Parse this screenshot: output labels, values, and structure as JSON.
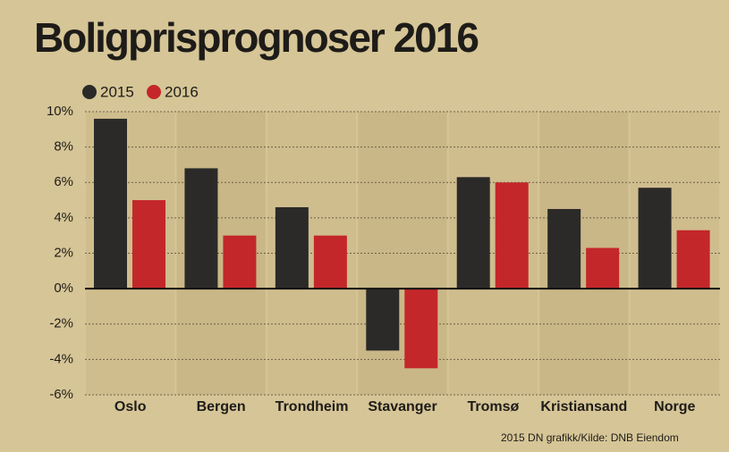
{
  "chart_data": {
    "type": "bar",
    "title": "Boligprisprognoser 2016",
    "categories": [
      "Oslo",
      "Bergen",
      "Trondheim",
      "Stavanger",
      "Tromsø",
      "Kristiansand",
      "Norge"
    ],
    "series": [
      {
        "name": "2015",
        "color": "#2b2a28",
        "values": [
          9.6,
          6.8,
          4.6,
          -3.5,
          6.3,
          4.5,
          5.7
        ]
      },
      {
        "name": "2016",
        "color": "#c3272a",
        "values": [
          5.0,
          3.0,
          3.0,
          -4.5,
          6.0,
          2.3,
          3.3
        ]
      }
    ],
    "ylim": [
      -6,
      10
    ],
    "yticks": [
      {
        "value": -6,
        "label": "-6%"
      },
      {
        "value": -4,
        "label": "-4%"
      },
      {
        "value": -2,
        "label": "-2%"
      },
      {
        "value": 0,
        "label": "0%"
      },
      {
        "value": 2,
        "label": "2%"
      },
      {
        "value": 4,
        "label": "4%"
      },
      {
        "value": 6,
        "label": "6%"
      },
      {
        "value": 8,
        "label": "8%"
      },
      {
        "value": 10,
        "label": "10%"
      }
    ],
    "grid": true,
    "source": "2015 DN grafikk/Kilde: DNB Eiendom"
  }
}
